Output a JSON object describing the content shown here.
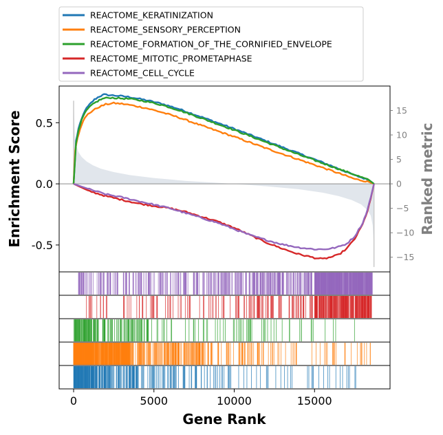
{
  "chart_data": {
    "type": "line",
    "ylabel_left": "Enrichment Score",
    "ylabel_right": "Ranked metric",
    "xlabel": "Gene Rank",
    "xlim": [
      -900,
      19700
    ],
    "ylim_es": [
      -0.72,
      0.8
    ],
    "ylim_metric": [
      -18,
      20
    ],
    "x_ticks": [
      0,
      5000,
      10000,
      15000
    ],
    "x_tick_labels": [
      "0",
      "5000",
      "10000",
      "15000"
    ],
    "y_ticks_es": [
      -0.5,
      0.0,
      0.5
    ],
    "y_tick_labels_es": [
      "-0.5",
      "0.0",
      "0.5"
    ],
    "y_ticks_metric": [
      -15,
      -10,
      -5,
      0,
      5,
      10,
      15
    ],
    "y_tick_labels_metric": [
      "−15",
      "−10",
      "−5",
      "0",
      "5",
      "10",
      "15"
    ],
    "legend_position": "above plot",
    "n_genes": 18700,
    "series": [
      {
        "name": "REACTOME_KERATINIZATION",
        "color": "#1f77b4",
        "x": [
          0,
          150,
          300,
          500,
          700,
          1000,
          1300,
          1600,
          1900,
          2300,
          2800,
          3500,
          4500,
          5500,
          6500,
          8000,
          10000,
          12000,
          14000,
          16000,
          17500,
          18400,
          18700
        ],
        "y": [
          0,
          0.35,
          0.45,
          0.53,
          0.6,
          0.65,
          0.69,
          0.715,
          0.73,
          0.725,
          0.72,
          0.71,
          0.685,
          0.655,
          0.615,
          0.545,
          0.45,
          0.35,
          0.25,
          0.15,
          0.07,
          0.03,
          0
        ]
      },
      {
        "name": "REACTOME_SENSORY_PERCEPTION",
        "color": "#ff7f0e",
        "x": [
          0,
          100,
          250,
          400,
          600,
          900,
          1200,
          1600,
          2000,
          2500,
          3000,
          3500,
          4500,
          5500,
          6500,
          8000,
          10000,
          12000,
          14000,
          16000,
          17500,
          18400,
          18700
        ],
        "y": [
          0,
          0.28,
          0.38,
          0.45,
          0.52,
          0.57,
          0.6,
          0.63,
          0.65,
          0.66,
          0.655,
          0.645,
          0.62,
          0.585,
          0.545,
          0.475,
          0.385,
          0.29,
          0.2,
          0.11,
          0.04,
          0.015,
          0
        ]
      },
      {
        "name": "REACTOME_FORMATION_OF_THE_CORNIFIED_ENVELOPE",
        "color": "#2ca02c",
        "x": [
          0,
          150,
          300,
          500,
          700,
          1000,
          1300,
          1600,
          1900,
          2300,
          2800,
          3500,
          4500,
          5500,
          6500,
          8000,
          10000,
          12000,
          14000,
          16000,
          17500,
          18400,
          18700
        ],
        "y": [
          0,
          0.33,
          0.44,
          0.52,
          0.58,
          0.63,
          0.66,
          0.685,
          0.7,
          0.705,
          0.7,
          0.695,
          0.675,
          0.645,
          0.605,
          0.535,
          0.44,
          0.34,
          0.24,
          0.145,
          0.075,
          0.03,
          0
        ]
      },
      {
        "name": "REACTOME_MITOTIC_PROMETAPHASE",
        "color": "#d62728",
        "x": [
          0,
          1000,
          2000,
          3000,
          4000,
          5000,
          6000,
          7000,
          8000,
          9000,
          10000,
          11000,
          12000,
          13000,
          14000,
          15000,
          15500,
          16000,
          16500,
          17000,
          17500,
          18000,
          18300,
          18500,
          18700
        ],
        "y": [
          0,
          -0.06,
          -0.1,
          -0.13,
          -0.16,
          -0.18,
          -0.2,
          -0.23,
          -0.27,
          -0.31,
          -0.36,
          -0.42,
          -0.48,
          -0.53,
          -0.575,
          -0.605,
          -0.615,
          -0.6,
          -0.58,
          -0.53,
          -0.45,
          -0.33,
          -0.22,
          -0.12,
          0
        ]
      },
      {
        "name": "REACTOME_CELL_CYCLE",
        "color": "#9467bd",
        "x": [
          0,
          1000,
          2000,
          3000,
          4000,
          5000,
          6000,
          7000,
          8000,
          9000,
          10000,
          11000,
          12000,
          13000,
          14000,
          15000,
          15500,
          16000,
          16500,
          17000,
          17500,
          18000,
          18300,
          18500,
          18700
        ],
        "y": [
          0,
          -0.045,
          -0.085,
          -0.11,
          -0.14,
          -0.17,
          -0.2,
          -0.24,
          -0.28,
          -0.32,
          -0.37,
          -0.42,
          -0.46,
          -0.495,
          -0.52,
          -0.535,
          -0.535,
          -0.53,
          -0.515,
          -0.49,
          -0.43,
          -0.32,
          -0.21,
          -0.11,
          0
        ]
      }
    ],
    "ranked_metric": {
      "color": "#c8d2dc",
      "x": [
        0,
        80,
        150,
        300,
        500,
        800,
        1200,
        1700,
        2500,
        3500,
        5000,
        7000,
        9500,
        12000,
        14000,
        15500,
        16500,
        17300,
        17900,
        18300,
        18500,
        18620,
        18680,
        18700
      ],
      "y": [
        17,
        10,
        8,
        6.5,
        5.5,
        4.6,
        3.8,
        3.1,
        2.4,
        1.8,
        1.2,
        0.6,
        0.1,
        -0.5,
        -1.1,
        -1.8,
        -2.5,
        -3.3,
        -4.2,
        -5.4,
        -6.5,
        -8.5,
        -12,
        -17
      ]
    },
    "hit_strip_order": [
      "REACTOME_CELL_CYCLE",
      "REACTOME_MITOTIC_PROMETAPHASE",
      "REACTOME_FORMATION_OF_THE_CORNIFIED_ENVELOPE",
      "REACTOME_SENSORY_PERCEPTION",
      "REACTOME_KERATINIZATION"
    ],
    "hit_density": [
      {
        "name": "REACTOME_CELL_CYCLE",
        "ranges": [
          [
            300,
            3000,
            0.02
          ],
          [
            3000,
            9000,
            0.018
          ],
          [
            9000,
            15000,
            0.03
          ],
          [
            15000,
            18600,
            0.12
          ]
        ]
      },
      {
        "name": "REACTOME_MITOTIC_PROMETAPHASE",
        "ranges": [
          [
            600,
            4000,
            0.006
          ],
          [
            4000,
            11000,
            0.008
          ],
          [
            11000,
            15000,
            0.015
          ],
          [
            15000,
            18600,
            0.06
          ]
        ]
      },
      {
        "name": "REACTOME_FORMATION_OF_THE_CORNIFIED_ENVELOPE",
        "ranges": [
          [
            0,
            1500,
            0.05
          ],
          [
            1500,
            5000,
            0.02
          ],
          [
            5000,
            12000,
            0.006
          ],
          [
            12000,
            17500,
            0.003
          ]
        ]
      },
      {
        "name": "REACTOME_SENSORY_PERCEPTION",
        "ranges": [
          [
            0,
            1200,
            0.25
          ],
          [
            1200,
            3500,
            0.12
          ],
          [
            3500,
            8000,
            0.035
          ],
          [
            8000,
            14000,
            0.012
          ],
          [
            14000,
            18500,
            0.005
          ]
        ]
      },
      {
        "name": "REACTOME_KERATINIZATION",
        "ranges": [
          [
            0,
            1500,
            0.09
          ],
          [
            1500,
            4000,
            0.04
          ],
          [
            4000,
            10000,
            0.012
          ],
          [
            10000,
            18000,
            0.004
          ]
        ]
      }
    ]
  }
}
